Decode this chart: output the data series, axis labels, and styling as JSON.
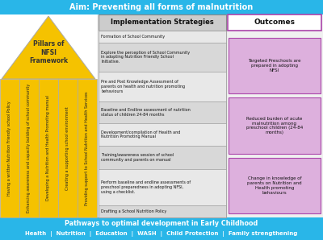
{
  "aim_text": "Aim: Preventing all forms of malnutrition",
  "aim_bg": "#29b6e8",
  "aim_text_color": "white",
  "pillars_title": "Pillars of\nNFSI\nFramework",
  "pillars_columns": [
    "Having a written Nutrition Friendly school Policy",
    "Enhancing awareness and capacity building of school community",
    "Developing a Nutrition and Health Promoting manual",
    "Creating a supporting school environment",
    "Providing support to School Nutrition and Health Services"
  ],
  "impl_title": "Implementation Strategies",
  "impl_strategies": [
    "Formation of School Community",
    "Explore the perception of School Community\nin adopting Nutrition Friendly School\nInitiative.",
    "Pre and Post Knowledge Assessment of\nparents on health and nutrition promoting\nbehaviours",
    "Baseline and Endline assessment of nutrition\nstatus of children 24-84 months",
    "Development/compilation of Health and\nNutrition Promoting Manual",
    "Training/awareness session of school\ncommunity and parents on manual",
    "Perform baseline and endline assessments of\npreschool preparedness in adopting NFSI,\nusing a checklist.",
    "Drafting a School Nutrition Policy"
  ],
  "outcomes_title": "Outcomes",
  "outcomes": [
    "Targeted Preschools are\nprepared in adopting\nNFSI",
    "Reduced burden of acute\nmalnutrition among\npreschool children (24-84\nmonths)",
    "Change in knowledge of\nparents on Nutrition and\nHealth promoting\nbehaviours"
  ],
  "footer_text1": "Pathways to optimal development in Early Childhood",
  "footer_text2": "Health  |  Nutrition  |  Education  |  WASH  |  Child Protection  |  Family strengthening",
  "footer_bg": "#29b6e8",
  "bg_color": "#f0f0f0",
  "yellow": "#f5c200",
  "yellow_light": "#f7d44c",
  "pink_header": "#cc88cc",
  "pink_box": "#ddb0dd",
  "gray_header": "#cccccc",
  "gray_row1": "#e8e8e8",
  "gray_row2": "#d8d8d8"
}
